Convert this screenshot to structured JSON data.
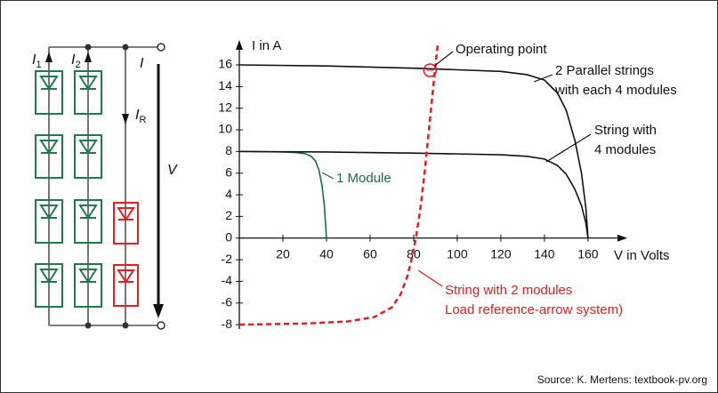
{
  "chart_data": {
    "type": "line",
    "y_axis_label": "I in A",
    "x_axis_label": "V in Volts",
    "xlim": [
      0,
      178
    ],
    "ylim": [
      -8.4,
      18.3
    ],
    "xticks": [
      20,
      40,
      60,
      80,
      100,
      120,
      140,
      160
    ],
    "yticks": [
      -8,
      -6,
      -4,
      -2,
      0,
      2,
      4,
      6,
      8,
      10,
      12,
      14,
      16
    ],
    "series": [
      {
        "name": [
          "1 Module"
        ],
        "color": "#1f6b45",
        "dashed": false,
        "x": [
          0,
          10,
          20,
          26,
          30,
          33,
          35,
          36.5,
          38,
          39,
          40
        ],
        "values": [
          8,
          7.98,
          7.95,
          7.9,
          7.8,
          7.55,
          7.1,
          6.3,
          4.8,
          3,
          0
        ]
      },
      {
        "name": [
          "String with",
          "4 modules"
        ],
        "color": "#111111",
        "dashed": false,
        "x": [
          0,
          40,
          80,
          120,
          132,
          140,
          146,
          150,
          154,
          157,
          159,
          160
        ],
        "values": [
          8,
          7.95,
          7.85,
          7.7,
          7.55,
          7.3,
          6.7,
          5.9,
          4.5,
          3,
          1.4,
          0
        ]
      },
      {
        "name": [
          "2 Parallel strings",
          "with each 4 modules"
        ],
        "color": "#111111",
        "dashed": false,
        "x": [
          0,
          40,
          80,
          120,
          132,
          140,
          146,
          150,
          154,
          157,
          159,
          160
        ],
        "values": [
          16,
          15.9,
          15.7,
          15.4,
          15.1,
          14.6,
          13.4,
          11.8,
          9,
          6,
          2.8,
          0
        ]
      },
      {
        "name": [
          "String with 2 modules",
          "Load reference-arrow system)"
        ],
        "color": "#e02020",
        "dashed": true,
        "x": [
          0,
          30,
          50,
          62,
          70,
          74,
          77,
          79,
          81,
          83,
          85,
          87,
          89,
          91
        ],
        "values": [
          -8,
          -7.9,
          -7.7,
          -7.3,
          -6.4,
          -5.2,
          -3.6,
          -2,
          0,
          2.6,
          6,
          10,
          14,
          17.8
        ]
      }
    ],
    "operating_point": {
      "label": "Operating point",
      "x": 87.5,
      "y": 15.5
    },
    "source": "Source: K. Mertens: textbook-pv.org"
  },
  "circuit": {
    "labels": [
      {
        "main": "I",
        "sub": "1"
      },
      {
        "main": "I",
        "sub": "2"
      },
      {
        "main": "I",
        "sub": ""
      },
      {
        "main": "I",
        "sub": "R"
      },
      {
        "main": "V",
        "sub": ""
      }
    ]
  }
}
